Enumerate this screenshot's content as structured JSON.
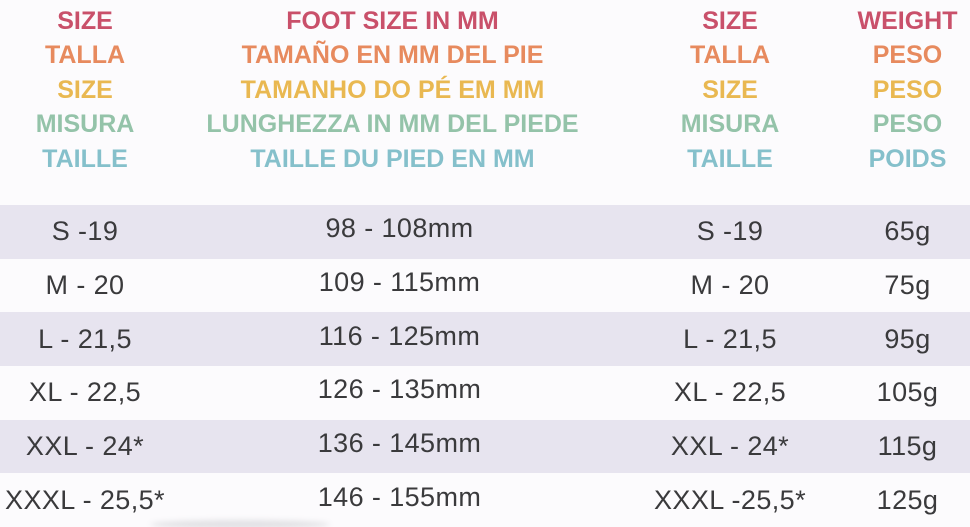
{
  "colors": {
    "background": "#fcfbfd",
    "stripe": "#e7e4ef",
    "data_text": "#3a3a3c",
    "header_colors": [
      "#c9506a",
      "#e78a5e",
      "#e9b851",
      "#94c3a9",
      "#85c0cb"
    ]
  },
  "header": {
    "columns": [
      {
        "name": "size-left",
        "lines": [
          "SIZE",
          "TALLA",
          "SIZE",
          "MISURA",
          "TAILLE"
        ]
      },
      {
        "name": "foot-size-mm",
        "lines": [
          "FOOT SIZE IN MM",
          "TAMAÑO EN MM DEL PIE",
          "TAMANHO DO PÉ EM MM",
          "LUNGHEZZA IN MM DEL PIEDE",
          "TAILLE DU PIED EN MM"
        ]
      },
      {
        "name": "size-right",
        "lines": [
          "SIZE",
          "TALLA",
          "SIZE",
          "MISURA",
          "TAILLE"
        ]
      },
      {
        "name": "weight",
        "lines": [
          "WEIGHT",
          "PESO",
          "PESO",
          "PESO",
          "POIDS"
        ]
      }
    ]
  },
  "rows": [
    {
      "size_left": "S -19",
      "foot_size": "98 - 108mm",
      "size_right": "S -19",
      "weight": "65g"
    },
    {
      "size_left": "M - 20",
      "foot_size": "109 - 115mm",
      "size_right": "M - 20",
      "weight": "75g"
    },
    {
      "size_left": "L - 21,5",
      "foot_size": "116 - 125mm",
      "size_right": "L - 21,5",
      "weight": "95g"
    },
    {
      "size_left": "XL - 22,5",
      "foot_size": "126 - 135mm",
      "size_right": "XL - 22,5",
      "weight": "105g"
    },
    {
      "size_left": "XXL - 24*",
      "foot_size": "136 - 145mm",
      "size_right": "XXL - 24*",
      "weight": "115g"
    },
    {
      "size_left": "XXXL - 25,5*",
      "foot_size": "146 - 155mm",
      "size_right": "XXXL -25,5*",
      "weight": "125g"
    }
  ]
}
